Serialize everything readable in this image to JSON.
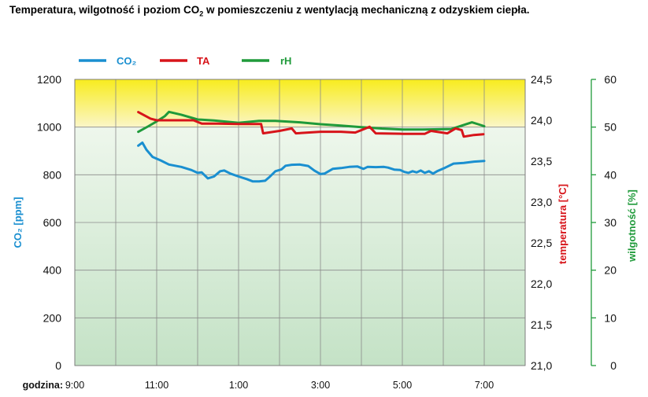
{
  "title_main": "Temperatura, wilgotność i poziom CO",
  "title_sub": "2",
  "title_rest": " w pomieszczeniu z wentylacją mechaniczną z odzyskiem ciepła.",
  "colors": {
    "co2": "#1a8fd0",
    "ta": "#d7141a",
    "rh": "#1f9a3a",
    "band_top": "#f8ec1e",
    "band_bottom": "#fbf6c8",
    "plot_top": "#eef7ec",
    "plot_bottom": "#c4e2c6"
  },
  "chart_data": {
    "type": "line",
    "title": "Temperatura, wilgotność i poziom CO2 w pomieszczeniu z wentylacją mechaniczną z odzyskiem ciepła.",
    "x_prefix_label": "godzina:",
    "x_range": [
      9,
      20
    ],
    "x_ticks": [
      {
        "x": 9,
        "label": "9:00"
      },
      {
        "x": 11,
        "label": "11:00"
      },
      {
        "x": 13,
        "label": "1:00"
      },
      {
        "x": 15,
        "label": "3:00"
      },
      {
        "x": 17,
        "label": "5:00"
      },
      {
        "x": 19,
        "label": "7:00"
      }
    ],
    "left_axis": {
      "label": "CO₂ [ppm]",
      "range": [
        0,
        1200
      ],
      "ticks": [
        "0",
        "200",
        "400",
        "600",
        "800",
        "1000",
        "1200"
      ]
    },
    "temp_axis": {
      "label": "temperatura [°C]",
      "range": [
        21.0,
        24.5
      ],
      "ticks": [
        "21,0",
        "21,5",
        "22,0",
        "22,5",
        "23,0",
        "23,5",
        "24,0",
        "24,5"
      ]
    },
    "rh_axis": {
      "label": "wilgotność [%]",
      "range": [
        0,
        60
      ],
      "ticks": [
        "0",
        "10",
        "20",
        "30",
        "40",
        "50",
        "60"
      ]
    },
    "comfort_band": {
      "from_ppm": 1000,
      "to_ppm": 1200
    },
    "series": [
      {
        "name": "CO₂",
        "key": "co2",
        "axis": "left",
        "points": [
          [
            10.55,
            922
          ],
          [
            10.65,
            935
          ],
          [
            10.75,
            905
          ],
          [
            10.9,
            875
          ],
          [
            11.1,
            860
          ],
          [
            11.3,
            843
          ],
          [
            11.6,
            833
          ],
          [
            11.85,
            820
          ],
          [
            12.0,
            808
          ],
          [
            12.1,
            810
          ],
          [
            12.25,
            785
          ],
          [
            12.4,
            793
          ],
          [
            12.55,
            815
          ],
          [
            12.65,
            818
          ],
          [
            12.8,
            805
          ],
          [
            13.0,
            793
          ],
          [
            13.2,
            782
          ],
          [
            13.35,
            772
          ],
          [
            13.5,
            772
          ],
          [
            13.65,
            775
          ],
          [
            13.75,
            790
          ],
          [
            13.9,
            815
          ],
          [
            14.05,
            823
          ],
          [
            14.15,
            838
          ],
          [
            14.3,
            842
          ],
          [
            14.5,
            843
          ],
          [
            14.7,
            837
          ],
          [
            14.85,
            818
          ],
          [
            15.0,
            803
          ],
          [
            15.1,
            805
          ],
          [
            15.2,
            815
          ],
          [
            15.3,
            825
          ],
          [
            15.5,
            828
          ],
          [
            15.7,
            833
          ],
          [
            15.9,
            835
          ],
          [
            16.05,
            825
          ],
          [
            16.15,
            833
          ],
          [
            16.35,
            832
          ],
          [
            16.55,
            833
          ],
          [
            16.65,
            830
          ],
          [
            16.8,
            822
          ],
          [
            16.95,
            820
          ],
          [
            17.05,
            812
          ],
          [
            17.15,
            808
          ],
          [
            17.25,
            815
          ],
          [
            17.35,
            810
          ],
          [
            17.45,
            818
          ],
          [
            17.55,
            808
          ],
          [
            17.65,
            815
          ],
          [
            17.75,
            805
          ],
          [
            17.85,
            815
          ],
          [
            18.05,
            830
          ],
          [
            18.25,
            847
          ],
          [
            18.5,
            850
          ],
          [
            18.75,
            855
          ],
          [
            19.0,
            858
          ]
        ]
      },
      {
        "name": "TA",
        "key": "ta",
        "axis": "temp",
        "points": [
          [
            10.55,
            24.1
          ],
          [
            10.85,
            24.02
          ],
          [
            11.0,
            24.0
          ],
          [
            11.5,
            24.0
          ],
          [
            11.9,
            24.0
          ],
          [
            12.1,
            23.96
          ],
          [
            12.5,
            23.96
          ],
          [
            13.0,
            23.955
          ],
          [
            13.55,
            23.955
          ],
          [
            13.6,
            23.84
          ],
          [
            14.0,
            23.87
          ],
          [
            14.3,
            23.9
          ],
          [
            14.4,
            23.84
          ],
          [
            15.0,
            23.86
          ],
          [
            15.5,
            23.86
          ],
          [
            15.85,
            23.85
          ],
          [
            16.2,
            23.92
          ],
          [
            16.35,
            23.84
          ],
          [
            17.0,
            23.835
          ],
          [
            17.55,
            23.835
          ],
          [
            17.7,
            23.87
          ],
          [
            18.1,
            23.84
          ],
          [
            18.3,
            23.9
          ],
          [
            18.45,
            23.88
          ],
          [
            18.5,
            23.8
          ],
          [
            18.75,
            23.82
          ],
          [
            18.98,
            23.83
          ]
        ]
      },
      {
        "name": "rH",
        "key": "rh",
        "axis": "rh",
        "points": [
          [
            10.55,
            49
          ],
          [
            10.8,
            50.2
          ],
          [
            11.0,
            51.2
          ],
          [
            11.2,
            52.3
          ],
          [
            11.3,
            53.2
          ],
          [
            11.6,
            52.6
          ],
          [
            12.0,
            51.6
          ],
          [
            12.4,
            51.4
          ],
          [
            13.0,
            50.9
          ],
          [
            13.5,
            51.3
          ],
          [
            13.9,
            51.3
          ],
          [
            14.5,
            51.0
          ],
          [
            15.0,
            50.6
          ],
          [
            15.5,
            50.3
          ],
          [
            16.0,
            50.0
          ],
          [
            16.5,
            49.7
          ],
          [
            17.0,
            49.5
          ],
          [
            17.5,
            49.5
          ],
          [
            18.2,
            49.6
          ],
          [
            18.45,
            50.3
          ],
          [
            18.7,
            51.0
          ],
          [
            18.85,
            50.6
          ],
          [
            19.0,
            50.2
          ]
        ]
      }
    ]
  }
}
